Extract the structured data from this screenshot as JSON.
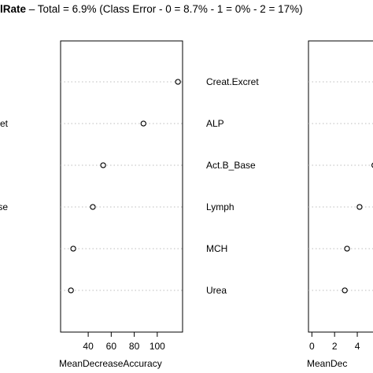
{
  "title": {
    "bold": "lRate",
    "rest": " – Total = 6.9% (Class Error - 0 = 8.7% - 1 = 0% - 2 = 17%)"
  },
  "chart_data": [
    {
      "type": "scatter",
      "panel": "left-partial",
      "categories": [
        "",
        "cret",
        "",
        "se",
        "",
        ""
      ],
      "values": [
        null,
        null,
        null,
        null,
        null,
        null
      ]
    },
    {
      "type": "scatter",
      "panel": "middle",
      "xlabel": "MeanDecreaseAccuracy",
      "xticks": [
        40,
        60,
        80,
        100
      ],
      "xticklabels": [
        "40",
        "60",
        "80",
        "100"
      ],
      "xlim": [
        16,
        122
      ],
      "categories": [
        "Creat.Excret",
        "ALP",
        "Act.B_Base",
        "Lymph",
        "MCH",
        "Urea"
      ],
      "values": [
        118,
        88,
        53,
        44,
        27,
        25
      ],
      "grid": "dotted-horizontal"
    },
    {
      "type": "scatter",
      "panel": "right-partial",
      "xlabel": "MeanDec",
      "xticks": [
        0,
        2,
        4
      ],
      "xticklabels": [
        "0",
        "2",
        "4"
      ],
      "xlim": [
        -0.3,
        5.8
      ],
      "categories": [
        "Creat.Excret",
        "ALP",
        "Act.B_Base",
        "Lymph",
        "MCH",
        "Urea"
      ],
      "values": [
        null,
        null,
        5.5,
        4.2,
        3.1,
        2.9
      ],
      "grid": "dotted-horizontal"
    }
  ]
}
